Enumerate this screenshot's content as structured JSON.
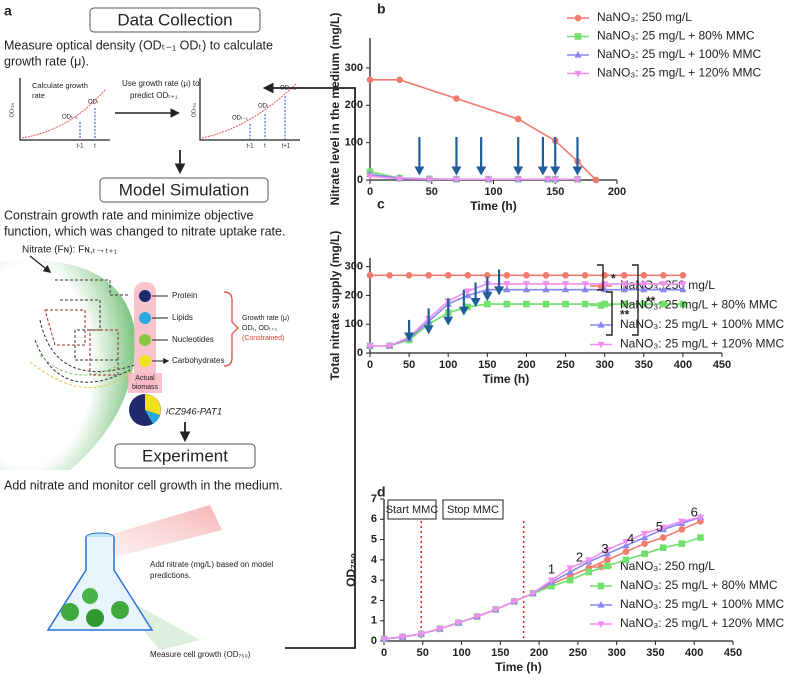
{
  "panel_a": {
    "label": "a",
    "steps": [
      {
        "title": "Data Collection",
        "text": [
          "Measure optical density (ODₜ₋₁ ODₜ) to calculate",
          "growth rate (μ)."
        ]
      },
      {
        "title": "Model Simulation",
        "text": [
          "Constrain growth rate and minimize objective",
          "function, which was changed to nitrate uptake rate."
        ]
      },
      {
        "title": "Experiment",
        "text": [
          "Add nitrate and monitor cell growth in the medium."
        ]
      }
    ],
    "mini_plot": {
      "title": [
        "Calculate growth",
        "rate"
      ],
      "axis": "OD₇₅₀",
      "od_labels": [
        "ODₜ₋₁",
        "ODₜ",
        "ODₜ₊₁"
      ],
      "t_labels": [
        "t-1",
        "t",
        "t+1"
      ]
    },
    "predict_text": [
      "Use growth rate (μ) to",
      "predict ODₜ₊₁"
    ],
    "nitrate_label": "Nitrate (Fɴ): Fɴ,ₜ→ₜ₊₁",
    "components": [
      "Protein",
      "Lipids",
      "Nucleotides",
      "Carbohydrates"
    ],
    "constraint": [
      "Growth rate (μ)",
      "ODₜ, ODₜ₊₁",
      "(Constrained)"
    ],
    "biomass": [
      "Actual",
      "biomass"
    ],
    "model_name": "iCZ946-PAT1",
    "flask_notes": [
      "Add nitrate (mg/L) based on model",
      "predictions.",
      "Measure cell growth (OD₇₅₀)"
    ]
  },
  "chart_data": [
    {
      "type": "line",
      "label": "b",
      "xlabel": "Time (h)",
      "ylabel": "Nitrate level in the medium (mg/L)",
      "xlim": [
        0,
        200
      ],
      "xticks": [
        0,
        50,
        100,
        150,
        200
      ],
      "ylim": [
        0,
        380
      ],
      "yticks": [
        0,
        100,
        200,
        300
      ],
      "series": [
        {
          "name": "NaNO₃: 250 mg/L",
          "color": "#f27b6f",
          "marker": "circle",
          "x": [
            0,
            24,
            70,
            120,
            150,
            168,
            183
          ],
          "values": [
            268,
            268,
            218,
            163,
            105,
            50,
            0
          ]
        },
        {
          "name": "NaNO₃: 25 mg/L + 80% MMC",
          "color": "#72e06c",
          "marker": "square",
          "x": [
            0,
            24,
            48,
            70,
            96,
            120,
            144,
            150,
            168
          ],
          "values": [
            22,
            5,
            3,
            2,
            2,
            2,
            2,
            2,
            2
          ]
        },
        {
          "name": "NaNO₃: 25 mg/L + 100% MMC",
          "color": "#8787ee",
          "marker": "triangle-up",
          "x": [
            0,
            24,
            48,
            70,
            96,
            120,
            144,
            150,
            168
          ],
          "values": [
            15,
            5,
            3,
            2,
            2,
            2,
            2,
            2,
            2
          ]
        },
        {
          "name": "NaNO₃: 25 mg/L + 120% MMC",
          "color": "#f28ef0",
          "marker": "triangle-down",
          "x": [
            0,
            24,
            48,
            70,
            96,
            120,
            144,
            150,
            168
          ],
          "values": [
            10,
            3,
            2,
            2,
            2,
            2,
            2,
            2,
            2
          ]
        }
      ],
      "arrow_color": "#1f5e99",
      "arrows": [
        {
          "x": 40,
          "from": 115,
          "to": 12
        },
        {
          "x": 70,
          "from": 115,
          "to": 12
        },
        {
          "x": 90,
          "from": 115,
          "to": 12
        },
        {
          "x": 120,
          "from": 115,
          "to": 12
        },
        {
          "x": 140,
          "from": 115,
          "to": 12
        },
        {
          "x": 150,
          "from": 115,
          "to": 12
        },
        {
          "x": 168,
          "from": 115,
          "to": 12
        }
      ]
    },
    {
      "type": "line",
      "label": "c",
      "xlabel": "Time (h)",
      "ylabel": "Total nitrate supply (mg/L)",
      "xlim": [
        0,
        450
      ],
      "xticks": [
        0,
        50,
        100,
        150,
        200,
        250,
        300,
        350,
        400,
        450
      ],
      "ylim": [
        0,
        330
      ],
      "yticks": [
        0,
        100,
        200,
        300
      ],
      "x": [
        0,
        25,
        50,
        75,
        100,
        125,
        150,
        175,
        200,
        225,
        250,
        275,
        300,
        325,
        350,
        375,
        400
      ],
      "series": [
        {
          "name": "NaNO₃: 250 mg/L",
          "color": "#f27b6f",
          "marker": "circle",
          "values": [
            270,
            270,
            270,
            270,
            270,
            270,
            270,
            270,
            270,
            270,
            270,
            270,
            270,
            270,
            270,
            270,
            270
          ]
        },
        {
          "name": "NaNO₃: 25 mg/L + 80% MMC",
          "color": "#72e06c",
          "marker": "square",
          "values": [
            25,
            25,
            45,
            100,
            140,
            160,
            170,
            170,
            170,
            170,
            170,
            170,
            170,
            170,
            170,
            170,
            170
          ]
        },
        {
          "name": "NaNO₃: 25 mg/L + 100% MMC",
          "color": "#8787ee",
          "marker": "triangle-up",
          "values": [
            25,
            25,
            50,
            110,
            170,
            200,
            220,
            220,
            220,
            220,
            220,
            220,
            220,
            220,
            220,
            220,
            220
          ]
        },
        {
          "name": "NaNO₃: 25 mg/L + 120% MMC",
          "color": "#f28ef0",
          "marker": "triangle-down",
          "values": [
            25,
            25,
            55,
            120,
            180,
            215,
            240,
            240,
            240,
            240,
            240,
            240,
            240,
            240,
            240,
            240,
            240
          ]
        }
      ],
      "arrow_color": "#1f5e99",
      "arrows": [
        {
          "x": 50,
          "from": 115,
          "to": 40
        },
        {
          "x": 75,
          "from": 155,
          "to": 65
        },
        {
          "x": 100,
          "from": 190,
          "to": 95
        },
        {
          "x": 120,
          "from": 220,
          "to": 130
        },
        {
          "x": 135,
          "from": 245,
          "to": 160
        },
        {
          "x": 150,
          "from": 265,
          "to": 180
        },
        {
          "x": 165,
          "from": 290,
          "to": 200
        }
      ],
      "significance": [
        "*",
        "**",
        "**"
      ]
    },
    {
      "type": "line",
      "label": "d",
      "xlabel": "Time (h)",
      "ylabel": "OD₇₅₀",
      "xlim": [
        0,
        450
      ],
      "xticks": [
        0,
        50,
        100,
        150,
        200,
        250,
        300,
        350,
        400,
        450
      ],
      "ylim": [
        0,
        7
      ],
      "yticks": [
        0,
        1,
        2,
        3,
        4,
        5,
        6,
        7
      ],
      "x": [
        0,
        24,
        48,
        72,
        96,
        120,
        144,
        168,
        192,
        216,
        240,
        264,
        288,
        312,
        336,
        360,
        384,
        408
      ],
      "series": [
        {
          "name": "NaNO₃: 250 mg/L",
          "color": "#f27b6f",
          "marker": "circle",
          "values": [
            0.1,
            0.2,
            0.35,
            0.6,
            0.9,
            1.2,
            1.55,
            1.95,
            2.35,
            2.8,
            3.2,
            3.6,
            4.0,
            4.4,
            4.8,
            5.1,
            5.5,
            5.9
          ]
        },
        {
          "name": "NaNO₃: 25 mg/L + 80% MMC",
          "color": "#72e06c",
          "marker": "square",
          "values": [
            0.1,
            0.2,
            0.35,
            0.6,
            0.9,
            1.2,
            1.55,
            1.95,
            2.35,
            2.7,
            3.0,
            3.4,
            3.7,
            4.0,
            4.3,
            4.6,
            4.8,
            5.1
          ]
        },
        {
          "name": "NaNO₃: 25 mg/L + 100% MMC",
          "color": "#8787ee",
          "marker": "triangle-up",
          "values": [
            0.1,
            0.2,
            0.35,
            0.6,
            0.9,
            1.2,
            1.55,
            1.95,
            2.35,
            2.9,
            3.4,
            3.9,
            4.3,
            4.7,
            5.1,
            5.5,
            5.8,
            6.1
          ]
        },
        {
          "name": "NaNO₃: 25 mg/L + 120% MMC",
          "color": "#f28ef0",
          "marker": "triangle-down",
          "values": [
            0.1,
            0.2,
            0.35,
            0.6,
            0.9,
            1.2,
            1.55,
            1.95,
            2.35,
            3.0,
            3.6,
            4.0,
            4.5,
            4.9,
            5.3,
            5.6,
            5.9,
            6.1
          ]
        }
      ],
      "phases": [
        "Start MMC",
        "Stop MMC"
      ],
      "vlines": [
        48,
        180
      ],
      "vline_color": "#e0201b",
      "annotations": [
        {
          "text": "1",
          "x": 216,
          "y": 3.5
        },
        {
          "text": "2",
          "x": 252,
          "y": 4.1
        },
        {
          "text": "3",
          "x": 285,
          "y": 4.5
        },
        {
          "text": "4",
          "x": 318,
          "y": 5.0
        },
        {
          "text": "5",
          "x": 355,
          "y": 5.6
        },
        {
          "text": "6",
          "x": 400,
          "y": 6.3
        }
      ]
    }
  ]
}
